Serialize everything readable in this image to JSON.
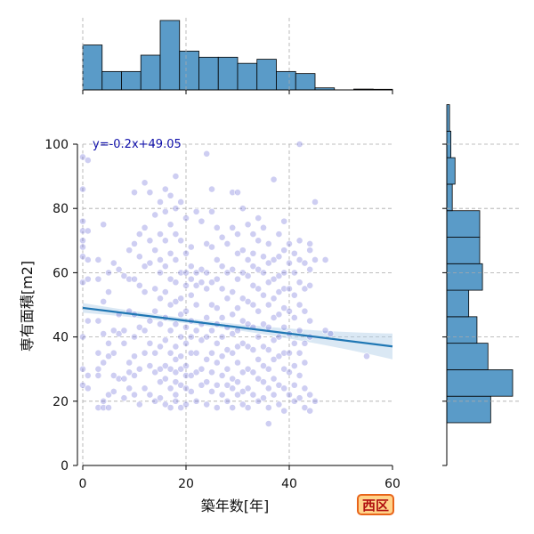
{
  "chart_data": {
    "type": "scatter",
    "xlabel": "築年数[年]",
    "ylabel": "専有面積[m2]",
    "xlim": [
      0,
      60
    ],
    "ylim": [
      0,
      100
    ],
    "xticks": [
      "0",
      "20",
      "40",
      "60"
    ],
    "yticks": [
      "0",
      "20",
      "40",
      "60",
      "80",
      "100"
    ],
    "grid": true,
    "regression_label": "y=-0.2x+49.05",
    "regression": {
      "slope": -0.2,
      "intercept": 49.05,
      "x_range": [
        0,
        60
      ],
      "ci_half_width_at_ends": [
        1.5,
        4.0
      ],
      "ci_half_width_min": 0.8
    },
    "badge": "西区",
    "colors": {
      "points": "#5050d0",
      "line": "#1f77b4",
      "band": "#aecbe6",
      "hist": "#5a9bc8",
      "badge_bg": "#ffd38a",
      "badge_border": "#e8641a",
      "badge_text": "#b01010"
    },
    "points": [
      [
        0,
        96
      ],
      [
        0,
        86
      ],
      [
        0,
        76
      ],
      [
        0,
        73
      ],
      [
        0,
        70
      ],
      [
        0,
        68
      ],
      [
        0,
        65
      ],
      [
        0,
        57
      ],
      [
        0,
        40
      ],
      [
        0,
        30
      ],
      [
        0,
        25
      ],
      [
        1,
        95
      ],
      [
        1,
        73
      ],
      [
        1,
        64
      ],
      [
        1,
        58
      ],
      [
        1,
        45
      ],
      [
        1,
        28
      ],
      [
        1,
        24
      ],
      [
        3,
        64
      ],
      [
        3,
        58
      ],
      [
        3,
        45
      ],
      [
        3,
        35
      ],
      [
        3,
        30
      ],
      [
        3,
        28
      ],
      [
        3,
        18
      ],
      [
        4,
        75
      ],
      [
        4,
        51
      ],
      [
        4,
        41
      ],
      [
        4,
        32
      ],
      [
        4,
        20
      ],
      [
        4,
        18
      ],
      [
        5,
        60
      ],
      [
        5,
        54
      ],
      [
        5,
        38
      ],
      [
        5,
        34
      ],
      [
        5,
        22
      ],
      [
        5,
        18
      ],
      [
        6,
        63
      ],
      [
        6,
        42
      ],
      [
        6,
        35
      ],
      [
        6,
        28
      ],
      [
        6,
        23
      ],
      [
        7,
        61
      ],
      [
        7,
        47
      ],
      [
        7,
        41
      ],
      [
        7,
        27
      ],
      [
        8,
        59
      ],
      [
        8,
        42
      ],
      [
        8,
        38
      ],
      [
        8,
        27
      ],
      [
        8,
        21
      ],
      [
        9,
        67
      ],
      [
        9,
        58
      ],
      [
        9,
        48
      ],
      [
        9,
        32
      ],
      [
        9,
        29
      ],
      [
        9,
        24
      ],
      [
        10,
        85
      ],
      [
        10,
        69
      ],
      [
        10,
        58
      ],
      [
        10,
        47
      ],
      [
        10,
        40
      ],
      [
        10,
        34
      ],
      [
        10,
        28
      ],
      [
        10,
        22
      ],
      [
        11,
        72
      ],
      [
        11,
        65
      ],
      [
        11,
        56
      ],
      [
        11,
        43
      ],
      [
        11,
        30
      ],
      [
        11,
        19
      ],
      [
        12,
        88
      ],
      [
        12,
        74
      ],
      [
        12,
        62
      ],
      [
        12,
        54
      ],
      [
        12,
        42
      ],
      [
        12,
        35
      ],
      [
        12,
        24
      ],
      [
        13,
        85
      ],
      [
        13,
        70
      ],
      [
        13,
        63
      ],
      [
        13,
        45
      ],
      [
        13,
        38
      ],
      [
        13,
        31
      ],
      [
        13,
        22
      ],
      [
        14,
        78
      ],
      [
        14,
        67
      ],
      [
        14,
        55
      ],
      [
        14,
        48
      ],
      [
        14,
        35
      ],
      [
        14,
        29
      ],
      [
        14,
        20
      ],
      [
        15,
        82
      ],
      [
        15,
        72
      ],
      [
        15,
        64
      ],
      [
        15,
        60
      ],
      [
        15,
        52
      ],
      [
        15,
        44
      ],
      [
        15,
        37
      ],
      [
        15,
        30
      ],
      [
        15,
        26
      ],
      [
        15,
        21
      ],
      [
        16,
        86
      ],
      [
        16,
        79
      ],
      [
        16,
        70
      ],
      [
        16,
        62
      ],
      [
        16,
        54
      ],
      [
        16,
        46
      ],
      [
        16,
        39
      ],
      [
        16,
        31
      ],
      [
        16,
        27
      ],
      [
        16,
        19
      ],
      [
        17,
        84
      ],
      [
        17,
        75
      ],
      [
        17,
        66
      ],
      [
        17,
        58
      ],
      [
        17,
        50
      ],
      [
        17,
        42
      ],
      [
        17,
        35
      ],
      [
        17,
        30
      ],
      [
        17,
        24
      ],
      [
        17,
        18
      ],
      [
        18,
        90
      ],
      [
        18,
        80
      ],
      [
        18,
        72
      ],
      [
        18,
        64
      ],
      [
        18,
        57
      ],
      [
        18,
        51
      ],
      [
        18,
        44
      ],
      [
        18,
        37
      ],
      [
        18,
        33
      ],
      [
        18,
        29
      ],
      [
        18,
        26
      ],
      [
        18,
        22
      ],
      [
        18,
        20
      ],
      [
        19,
        82
      ],
      [
        19,
        70
      ],
      [
        19,
        60
      ],
      [
        19,
        52
      ],
      [
        19,
        47
      ],
      [
        19,
        40
      ],
      [
        19,
        34
      ],
      [
        19,
        30
      ],
      [
        19,
        25
      ],
      [
        19,
        18
      ],
      [
        20,
        77
      ],
      [
        20,
        66
      ],
      [
        20,
        60
      ],
      [
        20,
        56
      ],
      [
        20,
        48
      ],
      [
        20,
        43
      ],
      [
        20,
        38
      ],
      [
        20,
        31
      ],
      [
        20,
        28
      ],
      [
        20,
        24
      ],
      [
        20,
        19
      ],
      [
        21,
        68
      ],
      [
        21,
        62
      ],
      [
        21,
        58
      ],
      [
        21,
        53
      ],
      [
        21,
        45
      ],
      [
        21,
        40
      ],
      [
        21,
        35
      ],
      [
        21,
        28
      ],
      [
        21,
        23
      ],
      [
        22,
        79
      ],
      [
        22,
        60
      ],
      [
        22,
        56
      ],
      [
        22,
        50
      ],
      [
        22,
        42
      ],
      [
        22,
        35
      ],
      [
        22,
        29
      ],
      [
        22,
        20
      ],
      [
        23,
        76
      ],
      [
        23,
        61
      ],
      [
        23,
        57
      ],
      [
        23,
        44
      ],
      [
        23,
        39
      ],
      [
        23,
        30
      ],
      [
        23,
        25
      ],
      [
        24,
        97
      ],
      [
        24,
        69
      ],
      [
        24,
        60
      ],
      [
        24,
        55
      ],
      [
        24,
        46
      ],
      [
        24,
        40
      ],
      [
        24,
        33
      ],
      [
        24,
        26
      ],
      [
        24,
        19
      ],
      [
        25,
        86
      ],
      [
        25,
        79
      ],
      [
        25,
        68
      ],
      [
        25,
        57
      ],
      [
        25,
        50
      ],
      [
        25,
        42
      ],
      [
        25,
        35
      ],
      [
        25,
        29
      ],
      [
        25,
        23
      ],
      [
        26,
        74
      ],
      [
        26,
        64
      ],
      [
        26,
        58
      ],
      [
        26,
        49
      ],
      [
        26,
        44
      ],
      [
        26,
        38
      ],
      [
        26,
        32
      ],
      [
        26,
        25
      ],
      [
        26,
        18
      ],
      [
        27,
        71
      ],
      [
        27,
        62
      ],
      [
        27,
        55
      ],
      [
        27,
        46
      ],
      [
        27,
        40
      ],
      [
        27,
        34
      ],
      [
        27,
        28
      ],
      [
        27,
        22
      ],
      [
        28,
        69
      ],
      [
        28,
        60
      ],
      [
        28,
        52
      ],
      [
        28,
        43
      ],
      [
        28,
        36
      ],
      [
        28,
        30
      ],
      [
        28,
        25
      ],
      [
        28,
        20
      ],
      [
        29,
        85
      ],
      [
        29,
        74
      ],
      [
        29,
        61
      ],
      [
        29,
        54
      ],
      [
        29,
        47
      ],
      [
        29,
        41
      ],
      [
        29,
        35
      ],
      [
        29,
        27
      ],
      [
        29,
        24
      ],
      [
        29,
        18
      ],
      [
        30,
        85
      ],
      [
        30,
        72
      ],
      [
        30,
        66
      ],
      [
        30,
        58
      ],
      [
        30,
        49
      ],
      [
        30,
        42
      ],
      [
        30,
        37
      ],
      [
        30,
        32
      ],
      [
        30,
        26
      ],
      [
        30,
        22
      ],
      [
        31,
        80
      ],
      [
        31,
        67
      ],
      [
        31,
        60
      ],
      [
        31,
        52
      ],
      [
        31,
        45
      ],
      [
        31,
        38
      ],
      [
        31,
        29
      ],
      [
        31,
        23
      ],
      [
        31,
        19
      ],
      [
        32,
        75
      ],
      [
        32,
        64
      ],
      [
        32,
        59
      ],
      [
        32,
        51
      ],
      [
        32,
        44
      ],
      [
        32,
        37
      ],
      [
        32,
        30
      ],
      [
        32,
        24
      ],
      [
        32,
        18
      ],
      [
        33,
        72
      ],
      [
        33,
        66
      ],
      [
        33,
        62
      ],
      [
        33,
        56
      ],
      [
        33,
        50
      ],
      [
        33,
        43
      ],
      [
        33,
        36
      ],
      [
        33,
        29
      ],
      [
        33,
        22
      ],
      [
        34,
        77
      ],
      [
        34,
        70
      ],
      [
        34,
        61
      ],
      [
        34,
        55
      ],
      [
        34,
        48
      ],
      [
        34,
        40
      ],
      [
        34,
        33
      ],
      [
        34,
        27
      ],
      [
        34,
        20
      ],
      [
        35,
        74
      ],
      [
        35,
        65
      ],
      [
        35,
        60
      ],
      [
        35,
        53
      ],
      [
        35,
        44
      ],
      [
        35,
        37
      ],
      [
        35,
        31
      ],
      [
        35,
        26
      ],
      [
        35,
        21
      ],
      [
        36,
        69
      ],
      [
        36,
        63
      ],
      [
        36,
        57
      ],
      [
        36,
        50
      ],
      [
        36,
        43
      ],
      [
        36,
        36
      ],
      [
        36,
        30
      ],
      [
        36,
        24
      ],
      [
        36,
        18
      ],
      [
        36,
        13
      ],
      [
        37,
        89
      ],
      [
        37,
        64
      ],
      [
        37,
        58
      ],
      [
        37,
        52
      ],
      [
        37,
        46
      ],
      [
        37,
        39
      ],
      [
        37,
        33
      ],
      [
        37,
        27
      ],
      [
        37,
        22
      ],
      [
        38,
        72
      ],
      [
        38,
        65
      ],
      [
        38,
        59
      ],
      [
        38,
        54
      ],
      [
        38,
        47
      ],
      [
        38,
        40
      ],
      [
        38,
        34
      ],
      [
        38,
        25
      ],
      [
        38,
        19
      ],
      [
        39,
        76
      ],
      [
        39,
        67
      ],
      [
        39,
        60
      ],
      [
        39,
        55
      ],
      [
        39,
        49
      ],
      [
        39,
        43
      ],
      [
        39,
        35
      ],
      [
        39,
        30
      ],
      [
        39,
        24
      ],
      [
        39,
        17
      ],
      [
        40,
        69
      ],
      [
        40,
        63
      ],
      [
        40,
        55
      ],
      [
        40,
        48
      ],
      [
        40,
        41
      ],
      [
        40,
        35
      ],
      [
        40,
        29
      ],
      [
        40,
        22
      ],
      [
        41,
        66
      ],
      [
        41,
        60
      ],
      [
        41,
        53
      ],
      [
        41,
        46
      ],
      [
        41,
        38
      ],
      [
        41,
        31
      ],
      [
        41,
        25
      ],
      [
        41,
        20
      ],
      [
        42,
        70
      ],
      [
        42,
        64
      ],
      [
        42,
        57
      ],
      [
        42,
        50
      ],
      [
        42,
        42
      ],
      [
        42,
        35
      ],
      [
        42,
        28
      ],
      [
        42,
        21
      ],
      [
        42,
        100
      ],
      [
        43,
        63
      ],
      [
        43,
        55
      ],
      [
        43,
        48
      ],
      [
        43,
        38
      ],
      [
        43,
        32
      ],
      [
        43,
        24
      ],
      [
        43,
        18
      ],
      [
        44,
        69
      ],
      [
        44,
        67
      ],
      [
        44,
        61
      ],
      [
        44,
        56
      ],
      [
        44,
        45
      ],
      [
        44,
        40
      ],
      [
        44,
        22
      ],
      [
        44,
        17
      ],
      [
        45,
        82
      ],
      [
        45,
        64
      ],
      [
        45,
        20
      ],
      [
        47,
        64
      ],
      [
        47,
        42
      ],
      [
        48,
        41
      ],
      [
        55,
        34
      ]
    ],
    "hist_x": {
      "bin_start": 0,
      "bin_width": 3.75,
      "counts": [
        22,
        9,
        9,
        17,
        34,
        19,
        16,
        16,
        13,
        15,
        9,
        8,
        1,
        0,
        0.4,
        0.3
      ]
    },
    "hist_y": {
      "bin_start": 13.3,
      "bin_width": 8.25,
      "counts": [
        16,
        24,
        15,
        11,
        8,
        13,
        12,
        12,
        2,
        3,
        1.5,
        1
      ]
    }
  }
}
